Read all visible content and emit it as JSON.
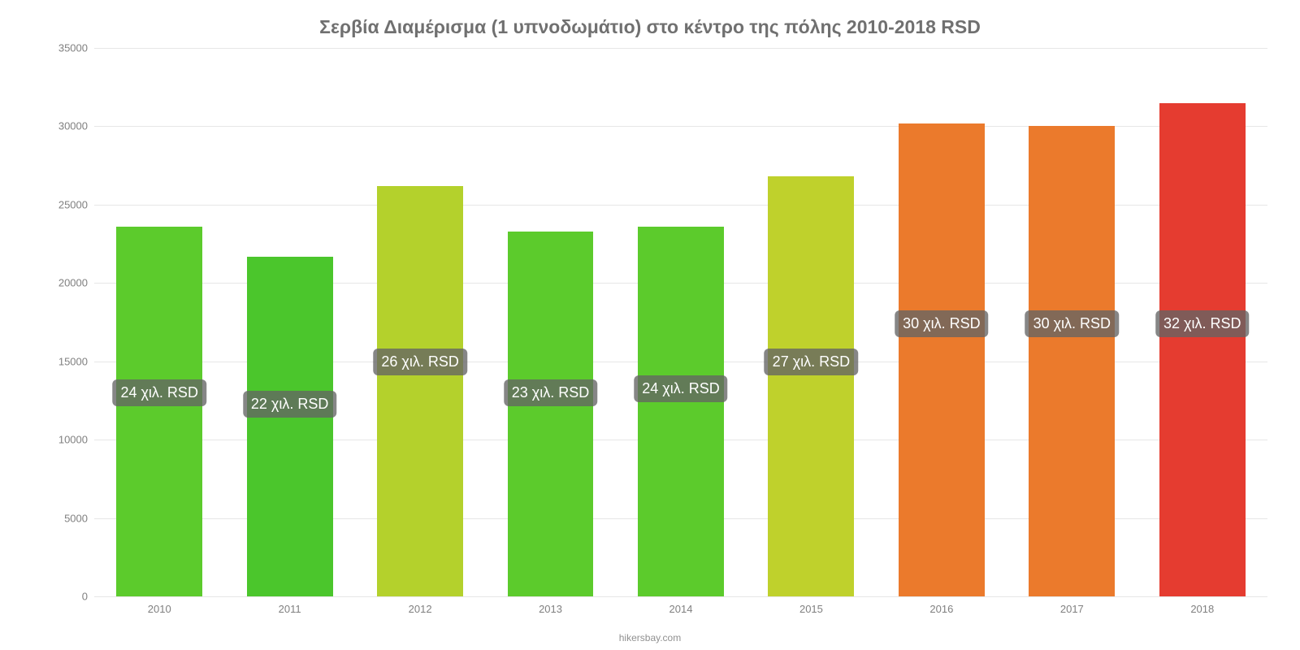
{
  "chart": {
    "type": "bar",
    "title": "Σερβία Διαμέρισμα (1 υπνοδωμάτιο) στο κέντρο της πόλης 2010-2018 RSD",
    "title_color": "#707070",
    "title_fontsize": 23,
    "background_color": "#ffffff",
    "grid_color": "#e6e6e6",
    "axis_label_color": "#808080",
    "axis_label_fontsize": 13,
    "ylim": [
      0,
      35000
    ],
    "yticks": [
      0,
      5000,
      10000,
      15000,
      20000,
      25000,
      30000,
      35000
    ],
    "bar_width_ratio": 0.66,
    "categories": [
      "2010",
      "2011",
      "2012",
      "2013",
      "2014",
      "2015",
      "2016",
      "2017",
      "2018"
    ],
    "values": [
      23600,
      21700,
      26200,
      23300,
      23600,
      26800,
      30200,
      30000,
      31500
    ],
    "bar_colors": [
      "#5ccb2c",
      "#4bc62c",
      "#b4d12c",
      "#5ccb2c",
      "#5ccb2c",
      "#bfd12c",
      "#eb7a2c",
      "#eb7a2c",
      "#e53c30"
    ],
    "value_labels": [
      "24 χιλ. RSD",
      "22 χιλ. RSD",
      "26 χιλ. RSD",
      "23 χιλ. RSD",
      "24 χιλ. RSD",
      "27 χιλ. RSD",
      "30 χιλ. RSD",
      "30 χιλ. RSD",
      "32 χιλ. RSD"
    ],
    "value_label_bg": "rgba(100,100,100,0.78)",
    "value_label_color": "#ffffff",
    "value_label_fontsize": 18,
    "label_y_positions": [
      13000,
      12300,
      15000,
      13000,
      13300,
      15000,
      17400,
      17400,
      17400
    ],
    "attribution": "hikersbay.com",
    "attribution_color": "#909090"
  }
}
